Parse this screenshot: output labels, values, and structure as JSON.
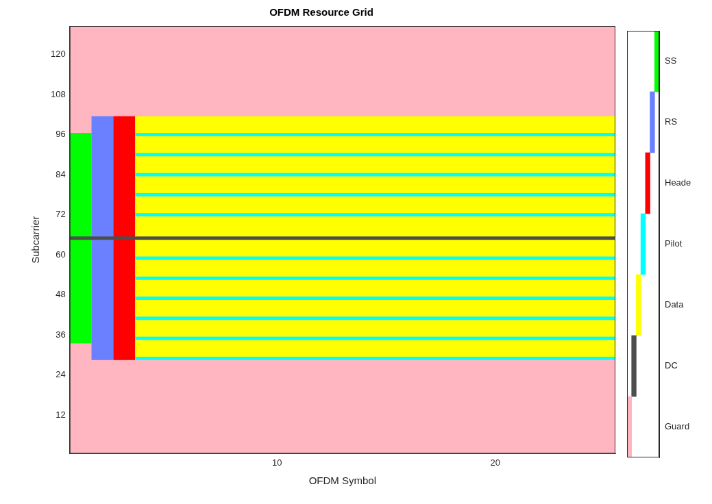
{
  "chart_data": {
    "type": "heatmap",
    "title": "OFDM Resource Grid",
    "x_label": "OFDM Symbol",
    "y_label": "Subcarrier",
    "xlim": [
      0.5,
      25.5
    ],
    "ylim": [
      0.5,
      128.5
    ],
    "xticks": [
      10,
      20
    ],
    "yticks": [
      12,
      24,
      36,
      48,
      60,
      72,
      84,
      96,
      108,
      120
    ],
    "grid": true,
    "classes": [
      {
        "name": "Guard",
        "color": "#ffb6c1"
      },
      {
        "name": "DC",
        "color": "#4d4d4d"
      },
      {
        "name": "Data",
        "color": "#ffff00"
      },
      {
        "name": "Pilot",
        "color": "#00ffff"
      },
      {
        "name": "Header",
        "color": "#ff0000"
      },
      {
        "name": "RS",
        "color": "#6b80ff"
      },
      {
        "name": "SS",
        "color": "#00ff00"
      }
    ],
    "regions": [
      {
        "class": "Guard",
        "symbols": [
          1,
          25
        ],
        "subcarriers": [
          1,
          128
        ]
      },
      {
        "class": "SS",
        "symbols": [
          1,
          1
        ],
        "subcarriers": [
          34,
          96
        ]
      },
      {
        "class": "RS",
        "symbols": [
          2,
          2
        ],
        "subcarriers": [
          29,
          101
        ]
      },
      {
        "class": "Header",
        "symbols": [
          3,
          3
        ],
        "subcarriers": [
          29,
          101
        ]
      },
      {
        "class": "Data",
        "symbols": [
          4,
          25
        ],
        "subcarriers": [
          29,
          101
        ]
      },
      {
        "class": "Pilot",
        "symbols": [
          4,
          25
        ],
        "subcarriers": [
          29,
          29
        ]
      },
      {
        "class": "Pilot",
        "symbols": [
          4,
          25
        ],
        "subcarriers": [
          35,
          35
        ]
      },
      {
        "class": "Pilot",
        "symbols": [
          4,
          25
        ],
        "subcarriers": [
          41,
          41
        ]
      },
      {
        "class": "Pilot",
        "symbols": [
          4,
          25
        ],
        "subcarriers": [
          47,
          47
        ]
      },
      {
        "class": "Pilot",
        "symbols": [
          4,
          25
        ],
        "subcarriers": [
          53,
          53
        ]
      },
      {
        "class": "Pilot",
        "symbols": [
          4,
          25
        ],
        "subcarriers": [
          59,
          59
        ]
      },
      {
        "class": "Pilot",
        "symbols": [
          4,
          25
        ],
        "subcarriers": [
          72,
          72
        ]
      },
      {
        "class": "Pilot",
        "symbols": [
          4,
          25
        ],
        "subcarriers": [
          78,
          78
        ]
      },
      {
        "class": "Pilot",
        "symbols": [
          4,
          25
        ],
        "subcarriers": [
          84,
          84
        ]
      },
      {
        "class": "Pilot",
        "symbols": [
          4,
          25
        ],
        "subcarriers": [
          90,
          90
        ]
      },
      {
        "class": "Pilot",
        "symbols": [
          4,
          25
        ],
        "subcarriers": [
          96,
          96
        ]
      },
      {
        "class": "DC",
        "symbols": [
          1,
          25
        ],
        "subcarriers": [
          65,
          65
        ]
      }
    ]
  }
}
